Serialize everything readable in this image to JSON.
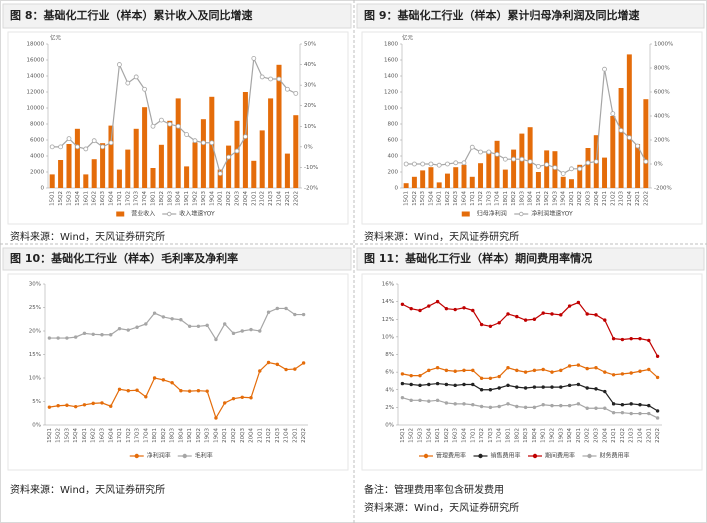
{
  "chart_data": [
    {
      "type": "combo",
      "title": "图 8：基础化工行业（样本）累计收入及同比增速",
      "y_label": "亿元",
      "source": "资料来源：Wind，天风证券研究所",
      "categories": [
        "15Q1",
        "15Q2",
        "15Q3",
        "15Q4",
        "16Q1",
        "16Q2",
        "16Q3",
        "16Q4",
        "17Q1",
        "17Q2",
        "17Q3",
        "17Q4",
        "18Q1",
        "18Q2",
        "18Q3",
        "18Q4",
        "19Q1",
        "19Q2",
        "19Q3",
        "19Q4",
        "20Q1",
        "20Q2",
        "20Q3",
        "20Q4",
        "21Q1",
        "21Q2",
        "21Q3",
        "21Q4",
        "22Q1",
        "22Q2"
      ],
      "series": [
        {
          "name": "营业收入",
          "color": "#e46c0a",
          "values": [
            1700,
            3500,
            5500,
            7400,
            1700,
            3600,
            5600,
            7800,
            2300,
            4800,
            7400,
            10100,
            2500,
            5400,
            8400,
            11200,
            2700,
            5700,
            8600,
            11400,
            2300,
            5300,
            8400,
            12000,
            3400,
            7200,
            11200,
            15400,
            4300,
            9100
          ]
        },
        {
          "name": "收入增速YOY",
          "color": "#a6a6a6",
          "axis": "y2",
          "values": [
            0,
            0,
            4,
            0,
            -1,
            3,
            0,
            2,
            40,
            31,
            34,
            28,
            10,
            13,
            11,
            10,
            6,
            3,
            2,
            2,
            -13,
            -5,
            -2,
            5,
            43,
            34,
            33,
            33,
            28,
            26
          ]
        }
      ],
      "ylim": [
        0,
        18000
      ],
      "yticks": [
        0,
        2000,
        4000,
        6000,
        8000,
        10000,
        12000,
        14000,
        16000,
        18000
      ],
      "y2lim": [
        -20,
        50
      ],
      "y2ticks": [
        {
          "value": -20,
          "label": "-20%"
        },
        {
          "value": -10,
          "label": "-10%"
        },
        {
          "value": 0,
          "label": "0%"
        },
        {
          "value": 10,
          "label": "10%"
        },
        {
          "value": 20,
          "label": "20%"
        },
        {
          "value": 30,
          "label": "30%"
        },
        {
          "value": 40,
          "label": "40%"
        },
        {
          "value": 50,
          "label": "50%"
        }
      ]
    },
    {
      "type": "combo",
      "title": "图 9：基础化工行业（样本）累计归母净利润及同比增速",
      "y_label": "亿元",
      "source": "资料来源：Wind，天风证券研究所",
      "categories": [
        "15Q1",
        "15Q2",
        "15Q3",
        "15Q4",
        "16Q1",
        "16Q2",
        "16Q3",
        "16Q4",
        "17Q1",
        "17Q2",
        "17Q3",
        "17Q4",
        "18Q1",
        "18Q2",
        "18Q3",
        "18Q4",
        "19Q1",
        "19Q2",
        "19Q3",
        "19Q4",
        "20Q1",
        "20Q2",
        "20Q3",
        "20Q4",
        "21Q1",
        "21Q2",
        "21Q3",
        "21Q4",
        "22Q1",
        "22Q2"
      ],
      "series": [
        {
          "name": "归母净利润",
          "color": "#e46c0a",
          "values": [
            60,
            140,
            220,
            260,
            70,
            180,
            260,
            290,
            140,
            310,
            460,
            590,
            230,
            480,
            680,
            760,
            200,
            470,
            460,
            140,
            110,
            290,
            500,
            660,
            380,
            900,
            1250,
            1670,
            550,
            1110
          ]
        },
        {
          "name": "净利润增速YOY",
          "color": "#a6a6a6",
          "axis": "y2",
          "values": [
            0,
            0,
            0,
            0,
            -10,
            0,
            10,
            10,
            140,
            100,
            100,
            80,
            40,
            40,
            40,
            20,
            -20,
            -5,
            -30,
            -80,
            -40,
            -40,
            10,
            20,
            790,
            420,
            280,
            220,
            150,
            20
          ]
        }
      ],
      "ylim": [
        0,
        1800
      ],
      "yticks": [
        0,
        200,
        400,
        600,
        800,
        1000,
        1200,
        1400,
        1600,
        1800
      ],
      "y2lim": [
        -200,
        1000
      ],
      "y2ticks": [
        {
          "value": -200,
          "label": "-200%"
        },
        {
          "value": 0,
          "label": "0%"
        },
        {
          "value": 200,
          "label": "200%"
        },
        {
          "value": 400,
          "label": "400%"
        },
        {
          "value": 600,
          "label": "600%"
        },
        {
          "value": 800,
          "label": "800%"
        },
        {
          "value": 1000,
          "label": "1000%"
        }
      ]
    },
    {
      "type": "line",
      "title": "图 10：基础化工行业（样本）毛利率及净利率",
      "source": "资料来源：Wind，天风证券研究所",
      "categories": [
        "15Q1",
        "15Q2",
        "15Q3",
        "15Q4",
        "16Q1",
        "16Q2",
        "16Q3",
        "16Q4",
        "17Q1",
        "17Q2",
        "17Q3",
        "17Q4",
        "18Q1",
        "18Q2",
        "18Q3",
        "18Q4",
        "19Q1",
        "19Q2",
        "19Q3",
        "19Q4",
        "20Q1",
        "20Q2",
        "20Q3",
        "20Q4",
        "21Q1",
        "21Q2",
        "21Q3",
        "21Q4",
        "22Q1",
        "22Q2"
      ],
      "series": [
        {
          "name": "净利润率",
          "color": "#e46c0a",
          "values": [
            3.8,
            4.1,
            4.2,
            3.9,
            4.3,
            4.6,
            4.7,
            4.0,
            7.6,
            7.3,
            7.4,
            6.0,
            10.0,
            9.6,
            9.0,
            7.3,
            7.2,
            7.3,
            7.2,
            1.5,
            4.7,
            5.6,
            5.9,
            5.8,
            11.5,
            13.3,
            12.9,
            11.8,
            11.9,
            13.2
          ]
        },
        {
          "name": "毛利率",
          "color": "#a6a6a6",
          "values": [
            18.5,
            18.5,
            18.5,
            18.7,
            19.5,
            19.3,
            19.2,
            19.2,
            20.5,
            20.2,
            20.8,
            21.5,
            23.8,
            23.0,
            22.6,
            22.4,
            21.0,
            21.0,
            21.2,
            18.2,
            21.5,
            19.5,
            20.0,
            20.3,
            20.0,
            24.0,
            24.8,
            24.8,
            23.5,
            23.5
          ]
        }
      ],
      "ylim": [
        0,
        30
      ],
      "yticks": [
        {
          "value": 0,
          "label": "0%"
        },
        {
          "value": 5,
          "label": "5%"
        },
        {
          "value": 10,
          "label": "10%"
        },
        {
          "value": 15,
          "label": "15%"
        },
        {
          "value": 20,
          "label": "20%"
        },
        {
          "value": 25,
          "label": "25%"
        },
        {
          "value": 30,
          "label": "30%"
        }
      ]
    },
    {
      "type": "line",
      "title": "图 11：基础化工行业（样本）期间费用率情况",
      "note": "备注：管理费用率包含研发费用",
      "source": "资料来源：Wind，天风证券研究所",
      "categories": [
        "15Q1",
        "15Q2",
        "15Q3",
        "15Q4",
        "16Q1",
        "16Q2",
        "16Q3",
        "16Q4",
        "17Q1",
        "17Q2",
        "17Q3",
        "17Q4",
        "18Q1",
        "18Q2",
        "18Q3",
        "18Q4",
        "19Q1",
        "19Q2",
        "19Q3",
        "19Q4",
        "20Q1",
        "20Q2",
        "20Q3",
        "20Q4",
        "21Q1",
        "21Q2",
        "21Q3",
        "21Q4",
        "22Q1",
        "22Q2"
      ],
      "series": [
        {
          "name": "管理费用率",
          "color": "#e46c0a",
          "values": [
            5.8,
            5.6,
            5.6,
            6.2,
            6.5,
            6.2,
            6.1,
            6.2,
            6.2,
            5.3,
            5.3,
            5.5,
            6.5,
            6.2,
            6.0,
            6.2,
            6.3,
            6.0,
            6.2,
            6.7,
            6.8,
            6.4,
            6.5,
            6.0,
            5.7,
            5.8,
            5.9,
            6.1,
            6.3,
            5.4
          ]
        },
        {
          "name": "销售费用率",
          "color": "#222222",
          "values": [
            4.7,
            4.6,
            4.5,
            4.6,
            4.7,
            4.6,
            4.5,
            4.6,
            4.6,
            4.0,
            4.0,
            4.2,
            4.5,
            4.3,
            4.2,
            4.3,
            4.3,
            4.3,
            4.3,
            4.5,
            4.6,
            4.2,
            4.1,
            3.8,
            2.4,
            2.3,
            2.4,
            2.3,
            2.2,
            1.6
          ]
        },
        {
          "name": "期间费用率",
          "color": "#c00000",
          "values": [
            13.7,
            13.2,
            13.0,
            13.5,
            14.0,
            13.2,
            13.1,
            13.3,
            13.0,
            11.4,
            11.2,
            11.6,
            12.6,
            12.3,
            11.9,
            12.0,
            12.7,
            12.6,
            12.5,
            13.5,
            13.9,
            12.6,
            12.5,
            11.9,
            9.8,
            9.7,
            9.8,
            9.8,
            9.6,
            7.8
          ]
        },
        {
          "name": "财务费用率",
          "color": "#a6a6a6",
          "values": [
            3.1,
            2.8,
            2.8,
            2.7,
            2.8,
            2.5,
            2.4,
            2.4,
            2.3,
            2.1,
            2.0,
            2.1,
            2.4,
            2.1,
            2.0,
            2.0,
            2.3,
            2.2,
            2.2,
            2.2,
            2.4,
            1.9,
            1.9,
            1.9,
            1.4,
            1.4,
            1.3,
            1.3,
            1.3,
            0.8
          ]
        }
      ],
      "ylim": [
        0,
        16
      ],
      "yticks": [
        {
          "value": 0,
          "label": "0%"
        },
        {
          "value": 2,
          "label": "2%"
        },
        {
          "value": 4,
          "label": "4%"
        },
        {
          "value": 6,
          "label": "6%"
        },
        {
          "value": 8,
          "label": "8%"
        },
        {
          "value": 10,
          "label": "10%"
        },
        {
          "value": 12,
          "label": "12%"
        },
        {
          "value": 14,
          "label": "14%"
        },
        {
          "value": 16,
          "label": "16%"
        }
      ]
    }
  ]
}
